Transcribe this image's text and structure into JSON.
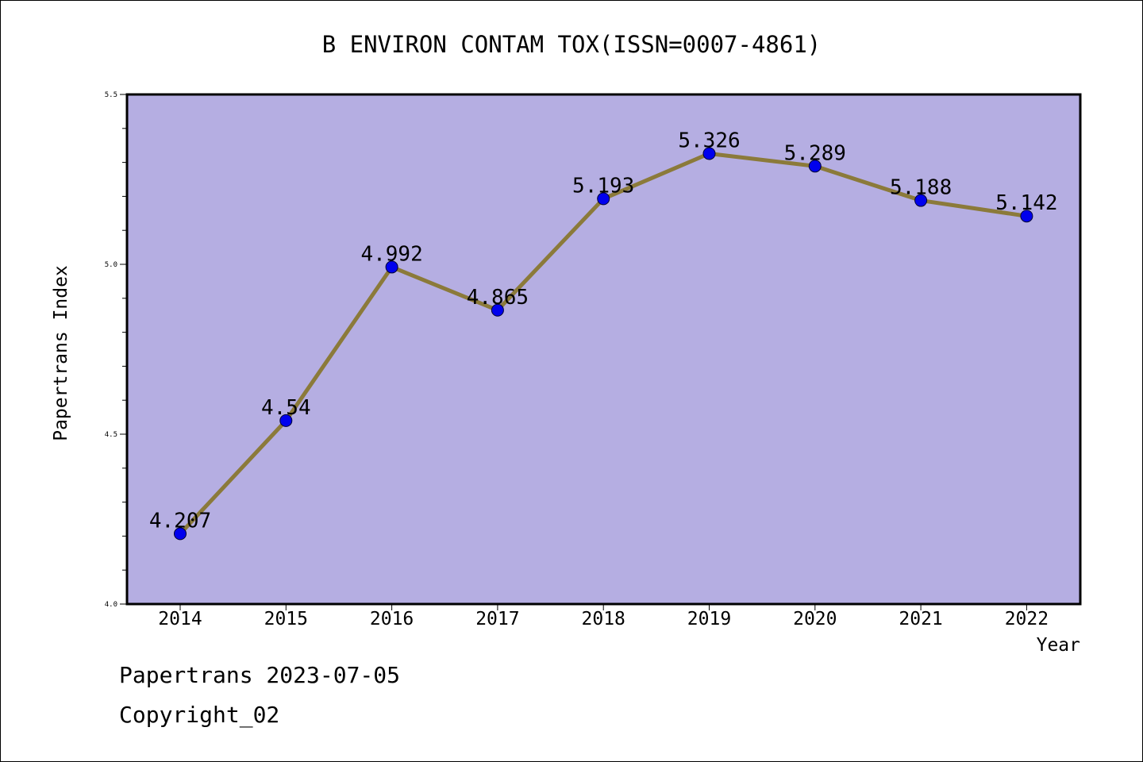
{
  "chart_data": {
    "type": "line",
    "title": "B ENVIRON CONTAM TOX(ISSN=0007-4861)",
    "xlabel": "Year",
    "ylabel": "Papertrans Index",
    "ylim": [
      4.0,
      5.5
    ],
    "yticks": [
      "4.0",
      "4.5",
      "5.0",
      "5.5"
    ],
    "categories": [
      "2014",
      "2015",
      "2016",
      "2017",
      "2018",
      "2019",
      "2020",
      "2021",
      "2022"
    ],
    "values": [
      4.207,
      4.54,
      4.992,
      4.865,
      5.193,
      5.326,
      5.289,
      5.188,
      5.142
    ],
    "data_labels": [
      "4.207",
      "4.54",
      "4.992",
      "4.865",
      "5.193",
      "5.326",
      "5.289",
      "5.188",
      "5.142"
    ],
    "grid": false,
    "colors": {
      "plot_background": "#b5aee2",
      "line": "#8b7a3a",
      "marker": "#0000ee"
    }
  },
  "footer": {
    "line1": "Papertrans 2023-07-05",
    "line2": "Copyright_02"
  }
}
